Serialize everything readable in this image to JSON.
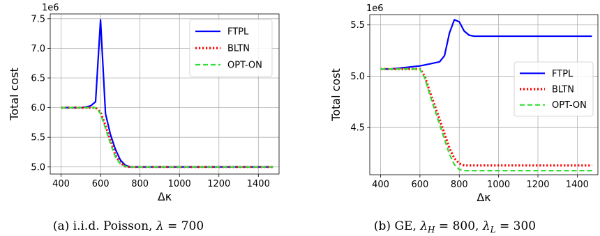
{
  "chart_data": [
    {
      "type": "line",
      "subplot_label": "(a)",
      "caption": "i.i.d. Poisson, λ = 700",
      "caption_parts": {
        "prefix": "(a)  i.i.d. Poisson, ",
        "symbol": "λ",
        "rest": " = 700"
      },
      "xlabel": "Δκ",
      "ylabel": "Total cost",
      "y_offset_text": "1e6",
      "xlim": [
        345,
        1505
      ],
      "ylim": [
        4.88,
        7.58
      ],
      "xticks": [
        400,
        600,
        800,
        1000,
        1200,
        1400
      ],
      "yticks": [
        5.0,
        5.5,
        6.0,
        6.5,
        7.0,
        7.5
      ],
      "ytick_labels": [
        "5.0",
        "5.5",
        "6.0",
        "6.5",
        "7.0",
        "7.5"
      ],
      "grid": true,
      "legend_position": "top-right",
      "series": [
        {
          "name": "FTPL",
          "color": "#0000ff",
          "style": "solid",
          "x": [
            400,
            450,
            500,
            525,
            550,
            575,
            600,
            625,
            650,
            675,
            700,
            725,
            750,
            775,
            800,
            900,
            1000,
            1100,
            1200,
            1300,
            1400,
            1475
          ],
          "y": [
            6.0,
            6.0,
            6.0,
            6.01,
            6.03,
            6.1,
            7.48,
            5.9,
            5.55,
            5.3,
            5.12,
            5.03,
            5.0,
            5.0,
            5.0,
            5.0,
            5.0,
            5.0,
            5.0,
            5.0,
            5.0,
            5.0
          ]
        },
        {
          "name": "BLTN",
          "color": "#ff0000",
          "style": "dotted",
          "x": [
            400,
            500,
            575,
            600,
            625,
            650,
            675,
            700,
            725,
            750,
            775,
            800,
            900,
            1000,
            1100,
            1200,
            1300,
            1400,
            1475
          ],
          "y": [
            6.0,
            6.0,
            6.0,
            5.92,
            5.7,
            5.45,
            5.2,
            5.07,
            5.01,
            5.0,
            5.0,
            5.0,
            5.0,
            5.0,
            5.0,
            5.0,
            5.0,
            5.0,
            5.0
          ]
        },
        {
          "name": "OPT-ON",
          "color": "#33dd33",
          "style": "dashed",
          "x": [
            400,
            500,
            575,
            600,
            625,
            650,
            675,
            700,
            725,
            750,
            775,
            800,
            900,
            1000,
            1100,
            1200,
            1300,
            1400,
            1475
          ],
          "y": [
            6.0,
            6.0,
            6.0,
            5.9,
            5.65,
            5.4,
            5.17,
            5.05,
            5.01,
            5.0,
            5.0,
            5.0,
            5.0,
            5.0,
            5.0,
            5.0,
            5.0,
            5.0,
            5.0
          ]
        }
      ]
    },
    {
      "type": "line",
      "subplot_label": "(b)",
      "caption": "GE, λH = 800, λL = 300",
      "caption_parts": {
        "prefix": "(b) GE, ",
        "sym1": "λ",
        "sub1": "H",
        "mid": " = 800, ",
        "sym2": "λ",
        "sub2": "L",
        "rest": " = 300"
      },
      "xlabel": "Δκ",
      "ylabel": "Total cost",
      "y_offset_text": "1e6",
      "xlim": [
        345,
        1505
      ],
      "ylim": [
        4.04,
        5.6
      ],
      "xticks": [
        400,
        600,
        800,
        1000,
        1200,
        1400
      ],
      "yticks": [
        4.5,
        5.0,
        5.5
      ],
      "ytick_labels": [
        "4.5",
        "5.0",
        "5.5"
      ],
      "grid": true,
      "legend_position": "center-right",
      "series": [
        {
          "name": "FTPL",
          "color": "#0000ff",
          "style": "solid",
          "x": [
            400,
            450,
            500,
            550,
            600,
            650,
            675,
            700,
            725,
            750,
            775,
            800,
            825,
            850,
            875,
            900,
            1000,
            1100,
            1200,
            1300,
            1400,
            1475
          ],
          "y": [
            5.07,
            5.07,
            5.08,
            5.09,
            5.1,
            5.12,
            5.13,
            5.14,
            5.2,
            5.42,
            5.55,
            5.53,
            5.44,
            5.4,
            5.39,
            5.39,
            5.39,
            5.39,
            5.39,
            5.39,
            5.39,
            5.39
          ]
        },
        {
          "name": "BLTN",
          "color": "#ff0000",
          "style": "dotted",
          "x": [
            400,
            500,
            550,
            600,
            625,
            650,
            700,
            750,
            775,
            800,
            825,
            850,
            900,
            1000,
            1100,
            1200,
            1300,
            1400,
            1475
          ],
          "y": [
            5.07,
            5.07,
            5.07,
            5.07,
            5.0,
            4.85,
            4.58,
            4.3,
            4.2,
            4.15,
            4.13,
            4.13,
            4.13,
            4.13,
            4.13,
            4.13,
            4.13,
            4.13,
            4.13
          ]
        },
        {
          "name": "OPT-ON",
          "color": "#33dd33",
          "style": "dashed",
          "x": [
            400,
            500,
            550,
            600,
            625,
            650,
            700,
            750,
            775,
            800,
            825,
            850,
            900,
            1000,
            1100,
            1200,
            1300,
            1400,
            1475
          ],
          "y": [
            5.07,
            5.07,
            5.07,
            5.07,
            4.98,
            4.82,
            4.53,
            4.24,
            4.14,
            4.09,
            4.08,
            4.08,
            4.08,
            4.08,
            4.08,
            4.08,
            4.08,
            4.08,
            4.08
          ]
        }
      ]
    }
  ]
}
